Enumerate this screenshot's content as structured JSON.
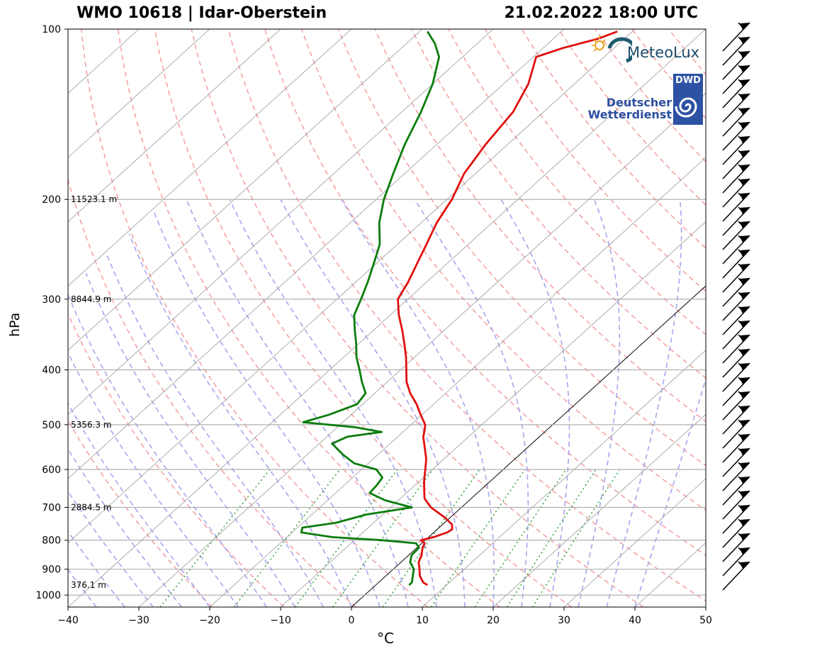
{
  "header": {
    "station": "WMO 10618 | Idar-Oberstein",
    "datetime": "21.02.2022 18:00 UTC"
  },
  "logos": {
    "meteolux": "MeteoLux",
    "dwd_line1": "Deutscher",
    "dwd_line2": "Wetterdienst",
    "dwd_box": "DWD"
  },
  "colors": {
    "temperature": "#e0110f",
    "dewpoint": "#0b7d0b",
    "dry_adiabat": "#f4a3a3",
    "moist_adiabat": "#a6a6ee",
    "mixing_ratio": "#3fa43f",
    "isotherm": "#999999"
  },
  "chart_data": {
    "type": "line",
    "subtype": "skew-T log-P sounding",
    "xlabel": "°C",
    "ylabel": "hPa",
    "xlim": [
      -40,
      50
    ],
    "ylim": [
      1050,
      100
    ],
    "yscale": "log",
    "x_ticks": [
      -40,
      -30,
      -20,
      -10,
      0,
      10,
      20,
      30,
      40,
      50
    ],
    "x_tick_labels": [
      "−40",
      "−30",
      "−20",
      "−10",
      "0",
      "10",
      "20",
      "30",
      "40",
      "50"
    ],
    "y_ticks": [
      100,
      200,
      300,
      400,
      500,
      600,
      700,
      800,
      900,
      1000
    ],
    "y_tick_labels": [
      "100",
      "200",
      "300",
      "400",
      "500",
      "600",
      "700",
      "800",
      "900",
      "1000"
    ],
    "height_labels": [
      {
        "pressure": 200,
        "text": "11523.1 m"
      },
      {
        "pressure": 300,
        "text": "8844.9 m"
      },
      {
        "pressure": 500,
        "text": "5356.3 m"
      },
      {
        "pressure": 700,
        "text": "2884.5 m"
      },
      {
        "pressure": 960,
        "text": "376.1 m"
      }
    ],
    "series": [
      {
        "role": "temperature",
        "points": [
          [
            960,
            7.3
          ],
          [
            950,
            6.3
          ],
          [
            925,
            4.8
          ],
          [
            900,
            3.7
          ],
          [
            875,
            2.5
          ],
          [
            850,
            1.8
          ],
          [
            825,
            0.8
          ],
          [
            810,
            0.4
          ],
          [
            800,
            -0.6
          ],
          [
            790,
            0.7
          ],
          [
            775,
            1.9
          ],
          [
            765,
            2.1
          ],
          [
            750,
            1.3
          ],
          [
            730,
            -0.7
          ],
          [
            700,
            -4.3
          ],
          [
            675,
            -6.6
          ],
          [
            650,
            -8.1
          ],
          [
            625,
            -9.6
          ],
          [
            600,
            -11.0
          ],
          [
            575,
            -12.5
          ],
          [
            550,
            -14.4
          ],
          [
            525,
            -16.4
          ],
          [
            510,
            -17.3
          ],
          [
            500,
            -18.0
          ],
          [
            480,
            -20.2
          ],
          [
            460,
            -22.4
          ],
          [
            440,
            -25.0
          ],
          [
            420,
            -27.3
          ],
          [
            400,
            -29.2
          ],
          [
            380,
            -31.2
          ],
          [
            360,
            -33.5
          ],
          [
            340,
            -36.0
          ],
          [
            320,
            -38.8
          ],
          [
            300,
            -41.4
          ],
          [
            280,
            -42.6
          ],
          [
            260,
            -44.2
          ],
          [
            240,
            -45.9
          ],
          [
            220,
            -47.8
          ],
          [
            200,
            -49.3
          ],
          [
            180,
            -51.6
          ],
          [
            160,
            -53.1
          ],
          [
            140,
            -54.3
          ],
          [
            125,
            -56.5
          ],
          [
            112,
            -59.6
          ],
          [
            108,
            -57.2
          ],
          [
            104,
            -53.7
          ],
          [
            101,
            -52.1
          ]
        ]
      },
      {
        "role": "dewpoint",
        "points": [
          [
            960,
            4.7
          ],
          [
            950,
            4.7
          ],
          [
            925,
            3.8
          ],
          [
            900,
            2.9
          ],
          [
            875,
            1.3
          ],
          [
            850,
            0.4
          ],
          [
            825,
            0.3
          ],
          [
            810,
            -0.8
          ],
          [
            800,
            -6.1
          ],
          [
            790,
            -13.6
          ],
          [
            775,
            -18.7
          ],
          [
            760,
            -19.3
          ],
          [
            745,
            -15.3
          ],
          [
            720,
            -12.2
          ],
          [
            700,
            -7.0
          ],
          [
            680,
            -11.9
          ],
          [
            660,
            -15.2
          ],
          [
            640,
            -15.4
          ],
          [
            620,
            -15.8
          ],
          [
            600,
            -17.9
          ],
          [
            585,
            -22.0
          ],
          [
            565,
            -24.9
          ],
          [
            540,
            -28.2
          ],
          [
            525,
            -27.1
          ],
          [
            515,
            -23.0
          ],
          [
            505,
            -27.6
          ],
          [
            495,
            -35.6
          ],
          [
            480,
            -33.1
          ],
          [
            460,
            -30.8
          ],
          [
            440,
            -31.3
          ],
          [
            420,
            -33.6
          ],
          [
            400,
            -35.8
          ],
          [
            380,
            -38.2
          ],
          [
            360,
            -40.3
          ],
          [
            340,
            -42.7
          ],
          [
            320,
            -45.1
          ],
          [
            300,
            -46.6
          ],
          [
            280,
            -48.3
          ],
          [
            260,
            -50.3
          ],
          [
            240,
            -52.5
          ],
          [
            220,
            -55.9
          ],
          [
            200,
            -58.9
          ],
          [
            180,
            -61.6
          ],
          [
            160,
            -64.5
          ],
          [
            140,
            -67.3
          ],
          [
            125,
            -70.0
          ],
          [
            112,
            -73.3
          ],
          [
            106,
            -76.0
          ],
          [
            101,
            -78.9
          ]
        ]
      }
    ],
    "reference_lines": {
      "dry_adiabats": true,
      "moist_adiabats": true,
      "mixing_ratio_lines": true,
      "isotherms": true,
      "zero_isotherm_highlighted": true,
      "grid": "pressure levels"
    },
    "wind_barbs": true
  }
}
